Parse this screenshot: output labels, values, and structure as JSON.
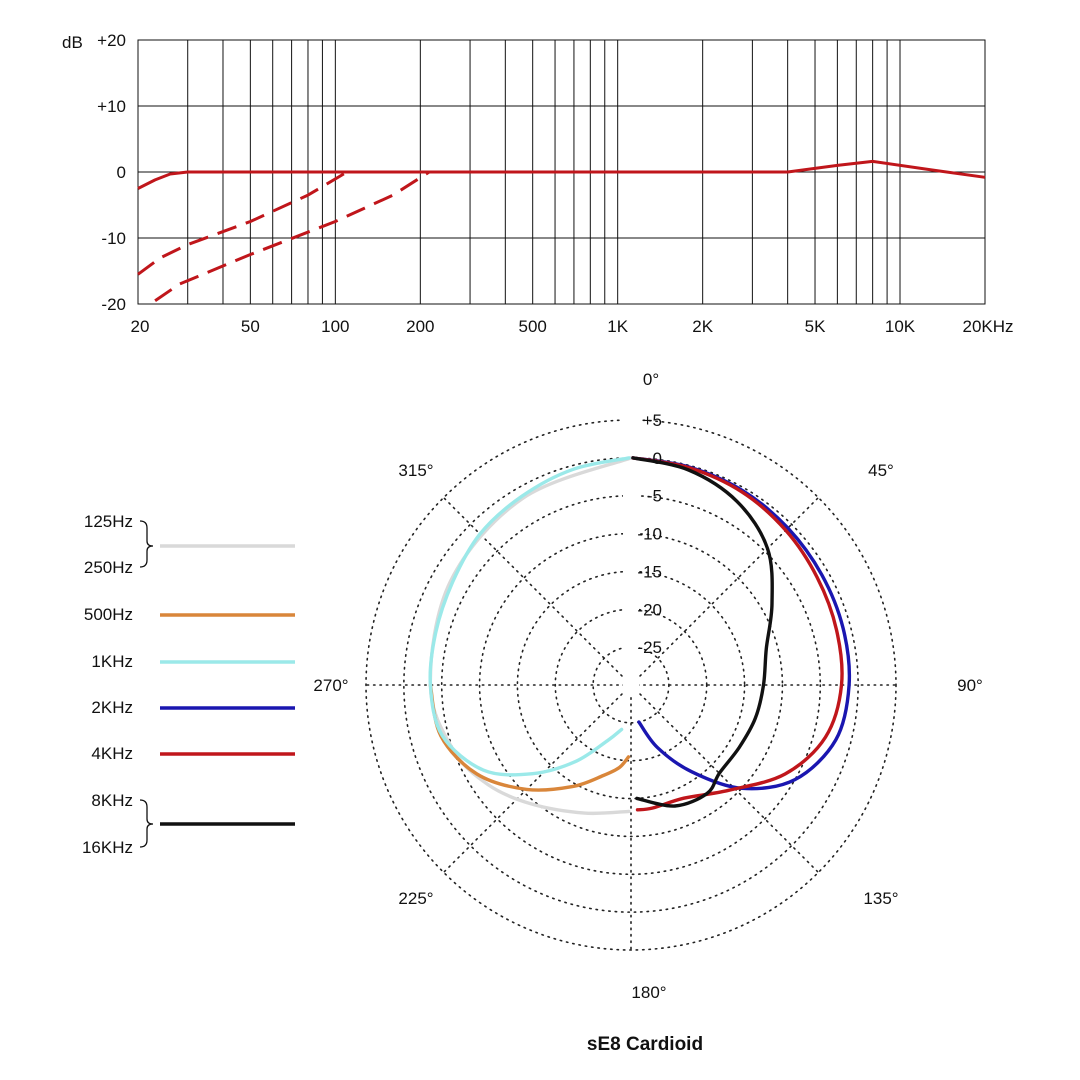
{
  "chart_data": [
    {
      "type": "line",
      "ylabel": "dB",
      "x_scale": "log",
      "xlim": [
        20,
        20000
      ],
      "ylim": [
        -20,
        20
      ],
      "grid": true,
      "x_ticks": [
        {
          "value": 20,
          "label": "20"
        },
        {
          "value": 50,
          "label": "50"
        },
        {
          "value": 100,
          "label": "100"
        },
        {
          "value": 200,
          "label": "200"
        },
        {
          "value": 500,
          "label": "500"
        },
        {
          "value": 1000,
          "label": "1K"
        },
        {
          "value": 2000,
          "label": "2K"
        },
        {
          "value": 5000,
          "label": "5K"
        },
        {
          "value": 10000,
          "label": "10K"
        },
        {
          "value": 20000,
          "label": "20KHz"
        }
      ],
      "y_ticks": [
        {
          "value": 20,
          "label": "+20"
        },
        {
          "value": 10,
          "label": "+10"
        },
        {
          "value": 0,
          "label": "0"
        },
        {
          "value": -10,
          "label": "-10"
        },
        {
          "value": -20,
          "label": "-20"
        }
      ],
      "color": "#c0161b",
      "series": [
        {
          "style": "solid",
          "x": [
            20,
            23,
            26,
            30,
            4000,
            6000,
            8000,
            13000,
            20000
          ],
          "y": [
            -2.5,
            -1.2,
            -0.3,
            0,
            0,
            1,
            1.6,
            0.3,
            -0.8
          ]
        },
        {
          "style": "dashed",
          "x": [
            20,
            24,
            30,
            50,
            80,
            110
          ],
          "y": [
            -15.5,
            -13,
            -11,
            -7.5,
            -3.5,
            0
          ]
        },
        {
          "style": "dashed",
          "x": [
            23,
            28,
            50,
            100,
            160,
            215
          ],
          "y": [
            -19.5,
            -17,
            -12.5,
            -7.5,
            -3.5,
            0
          ]
        }
      ]
    },
    {
      "type": "polar",
      "title": "sE8  Cardioid",
      "angle_labels": [
        {
          "angle": 0,
          "label": "0°"
        },
        {
          "angle": 45,
          "label": "45°"
        },
        {
          "angle": 90,
          "label": "90°"
        },
        {
          "angle": 135,
          "label": "135°"
        },
        {
          "angle": 180,
          "label": "180°"
        },
        {
          "angle": 225,
          "label": "225°"
        },
        {
          "angle": 270,
          "label": "270°"
        },
        {
          "angle": 315,
          "label": "315°"
        }
      ],
      "ring_labels": [
        {
          "value": 5,
          "label": "+5"
        },
        {
          "value": 0,
          "label": "0"
        },
        {
          "value": -5,
          "label": "-5"
        },
        {
          "value": -10,
          "label": "-10"
        },
        {
          "value": -15,
          "label": "-15"
        },
        {
          "value": -20,
          "label": "-20"
        },
        {
          "value": -25,
          "label": "-25"
        }
      ],
      "rlim": [
        -30,
        5
      ],
      "legend": [
        {
          "labels": [
            "125Hz",
            "250Hz"
          ],
          "color": "#d9d9d9"
        },
        {
          "labels": [
            "500Hz"
          ],
          "color": "#d9863a"
        },
        {
          "labels": [
            "1KHz"
          ],
          "color": "#9be9e9"
        },
        {
          "labels": [
            "2KHz"
          ],
          "color": "#1a16b0"
        },
        {
          "labels": [
            "4KHz"
          ],
          "color": "#c0161b"
        },
        {
          "labels": [
            "8KHz",
            "16KHz"
          ],
          "color": "#111111"
        }
      ],
      "series": [
        {
          "name": "125Hz / 250Hz",
          "color": "#d9d9d9",
          "side": "left",
          "points": [
            [
              360,
              0
            ],
            [
              330,
              -1.5
            ],
            [
              300,
              -2.5
            ],
            [
              270,
              -3.5
            ],
            [
              250,
              -5
            ],
            [
              235,
              -7
            ],
            [
              220,
              -9.5
            ],
            [
              200,
              -12
            ],
            [
              181,
              -13.3
            ]
          ]
        },
        {
          "name": "500Hz",
          "color": "#d9863a",
          "side": "left",
          "points": [
            [
              270,
              -3.5
            ],
            [
              255,
              -4
            ],
            [
              240,
              -6.5
            ],
            [
              225,
              -10.5
            ],
            [
              210,
              -14.5
            ],
            [
              197,
              -17.5
            ],
            [
              188,
              -19
            ],
            [
              182,
              -20.5
            ]
          ]
        },
        {
          "name": "1KHz",
          "color": "#9be9e9",
          "side": "left",
          "points": [
            [
              359.5,
              0
            ],
            [
              345,
              -0.5
            ],
            [
              330,
              -1.2
            ],
            [
              315,
              -1.8
            ],
            [
              300,
              -2.8
            ],
            [
              285,
              -3.3
            ],
            [
              270,
              -3.5
            ],
            [
              255,
              -4.2
            ],
            [
              240,
              -7.5
            ],
            [
              228,
              -12.5
            ],
            [
              216,
              -17.5
            ],
            [
              203,
              -22
            ],
            [
              192,
              -24
            ]
          ]
        },
        {
          "name": "2KHz",
          "color": "#1a16b0",
          "side": "right",
          "points": [
            [
              0.5,
              0
            ],
            [
              15,
              -0.2
            ],
            [
              30,
              -0.4
            ],
            [
              45,
              -0.7
            ],
            [
              60,
              -0.9
            ],
            [
              75,
              -1
            ],
            [
              90,
              -1.2
            ],
            [
              105,
              -2
            ],
            [
              120,
              -5
            ],
            [
              133,
              -10
            ],
            [
              145,
              -16
            ],
            [
              157,
              -21
            ],
            [
              168,
              -25
            ]
          ]
        },
        {
          "name": "4KHz",
          "color": "#c0161b",
          "side": "right",
          "points": [
            [
              0.5,
              0
            ],
            [
              15,
              -0.3
            ],
            [
              30,
              -0.6
            ],
            [
              45,
              -1.1
            ],
            [
              60,
              -1.6
            ],
            [
              75,
              -1.9
            ],
            [
              90,
              -2.2
            ],
            [
              105,
              -3.4
            ],
            [
              120,
              -6.5
            ],
            [
              137,
              -11
            ],
            [
              155,
              -13.5
            ],
            [
              170,
              -13.5
            ],
            [
              177,
              -13.5
            ]
          ]
        },
        {
          "name": "8KHz / 16KHz",
          "color": "#111111",
          "side": "right",
          "points": [
            [
              0.5,
              0
            ],
            [
              15,
              -0.6
            ],
            [
              30,
              -2
            ],
            [
              45,
              -4.5
            ],
            [
              60,
              -8.5
            ],
            [
              75,
              -11.5
            ],
            [
              90,
              -12.5
            ],
            [
              105,
              -13
            ],
            [
              120,
              -13.5
            ],
            [
              135,
              -13.5
            ],
            [
              145,
              -12.5
            ],
            [
              160,
              -13
            ],
            [
              177,
              -15
            ]
          ]
        }
      ]
    }
  ]
}
